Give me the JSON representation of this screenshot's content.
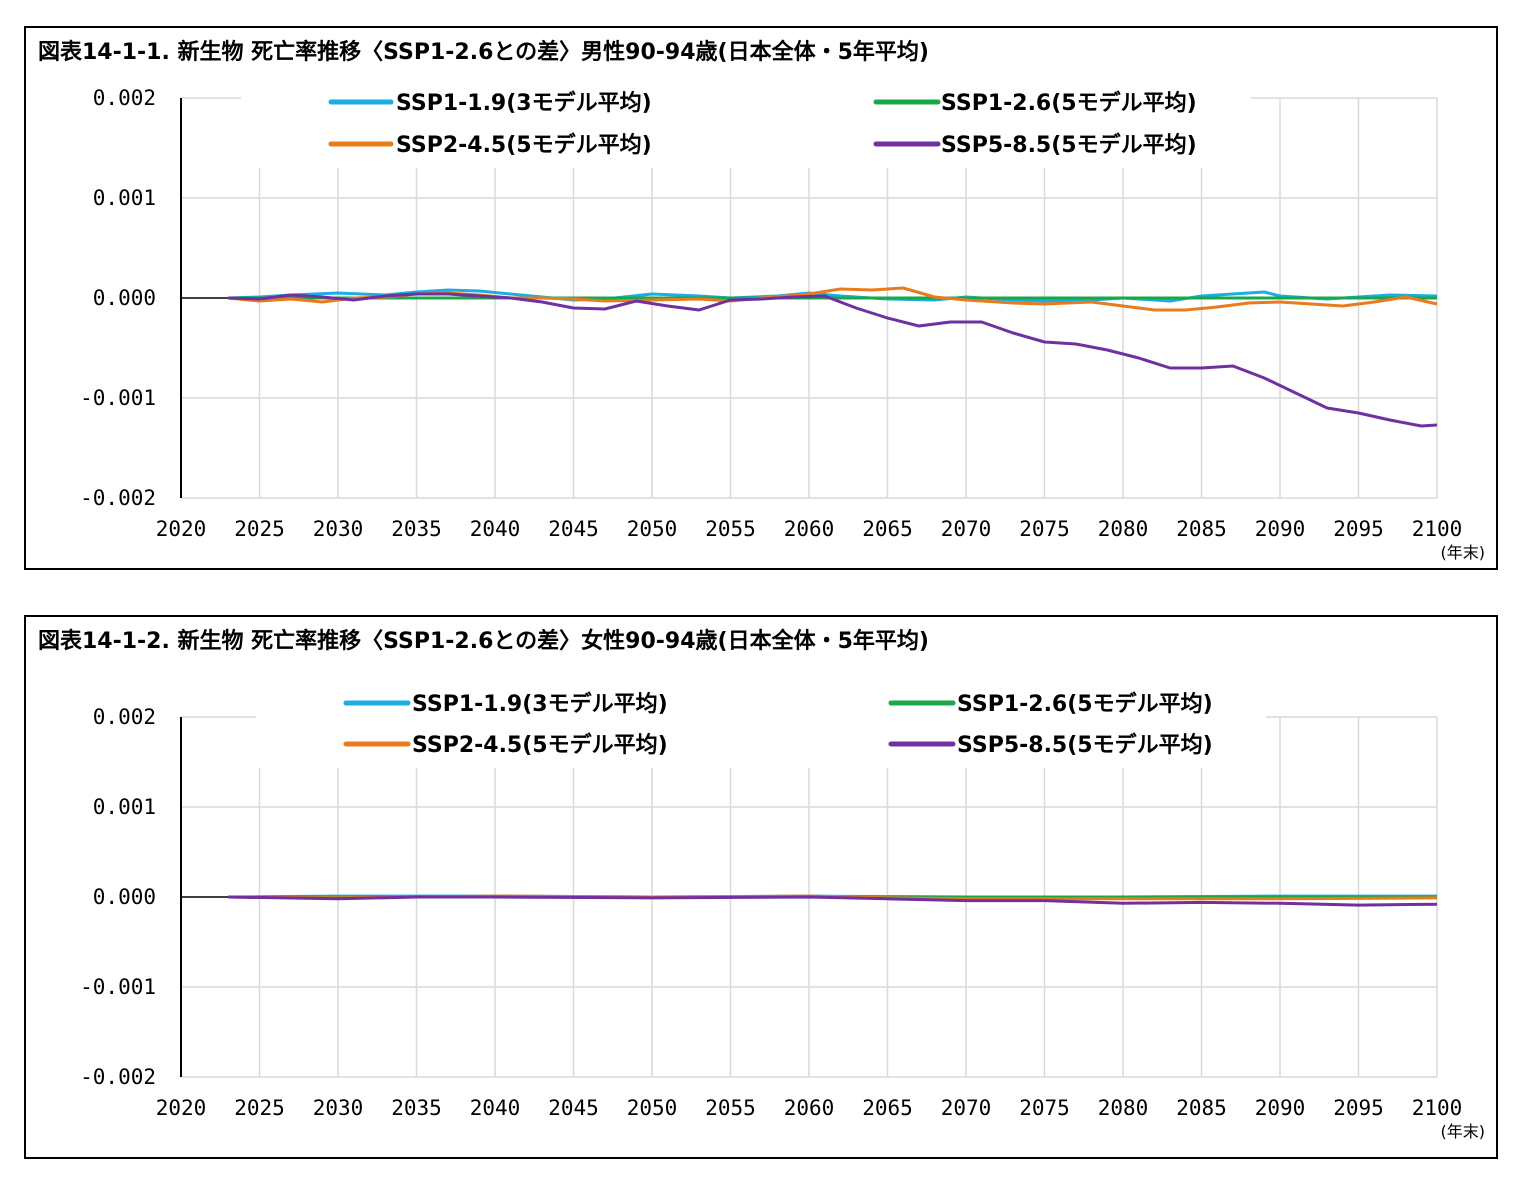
{
  "chart_data": [
    {
      "type": "line",
      "title": "図表14-1-1. 新生物 死亡率推移〈SSP1-2.6との差〉男性90-94歳(日本全体・5年平均)",
      "x_unit": "(年末)",
      "xlim": [
        2020,
        2100
      ],
      "ylim": [
        -0.002,
        0.002
      ],
      "x_ticks": [
        "2020",
        "2025",
        "2030",
        "2035",
        "2040",
        "2045",
        "2050",
        "2055",
        "2060",
        "2065",
        "2070",
        "2075",
        "2080",
        "2085",
        "2090",
        "2095",
        "2100"
      ],
      "y_ticks": [
        "0.002",
        "0.001",
        "0.000",
        "-0.001",
        "-0.002"
      ],
      "grid": true,
      "legend": "top",
      "series": [
        {
          "name": "SSP1-1.9(3モデル平均)",
          "color": "#1aaee5",
          "x": [
            2023,
            2025,
            2027,
            2030,
            2033,
            2035,
            2037,
            2039,
            2041,
            2043,
            2045,
            2047,
            2050,
            2053,
            2055,
            2058,
            2060,
            2062,
            2065,
            2068,
            2070,
            2073,
            2075,
            2078,
            2080,
            2083,
            2085,
            2087,
            2089,
            2090,
            2093,
            2095,
            2097,
            2100
          ],
          "y": [
            0,
            1e-05,
            3e-05,
            5e-05,
            3e-05,
            6e-05,
            8e-05,
            7e-05,
            4e-05,
            1e-05,
            -2e-05,
            -1e-05,
            4e-05,
            2e-05,
            0,
            2e-05,
            5e-05,
            2e-05,
            -1e-05,
            -2e-05,
            1e-05,
            -2e-05,
            -3e-05,
            -2e-05,
            0,
            -3e-05,
            2e-05,
            4e-05,
            6e-05,
            2e-05,
            -1e-05,
            1e-05,
            3e-05,
            2e-05
          ]
        },
        {
          "name": "SSP1-2.6(5モデル平均)",
          "color": "#18a84a",
          "x": [
            2023,
            2100
          ],
          "y": [
            0,
            0
          ]
        },
        {
          "name": "SSP2-4.5(5モデル平均)",
          "color": "#e97b1c",
          "x": [
            2023,
            2025,
            2027,
            2029,
            2031,
            2033,
            2035,
            2037,
            2039,
            2041,
            2043,
            2045,
            2047,
            2050,
            2053,
            2055,
            2057,
            2060,
            2062,
            2064,
            2066,
            2068,
            2070,
            2073,
            2075,
            2078,
            2080,
            2082,
            2084,
            2086,
            2088,
            2090,
            2092,
            2094,
            2096,
            2098,
            2100
          ],
          "y": [
            0,
            -3e-05,
            -1e-05,
            -4e-05,
            0,
            1e-05,
            4e-05,
            5e-05,
            3e-05,
            0,
            0,
            -1e-05,
            -3e-05,
            -2e-05,
            -1e-05,
            -3e-05,
            0,
            4e-05,
            9e-05,
            8e-05,
            0.0001,
            1e-05,
            -2e-05,
            -5e-05,
            -6e-05,
            -4e-05,
            -8e-05,
            -0.00012,
            -0.00012,
            -9e-05,
            -5e-05,
            -4e-05,
            -6e-05,
            -8e-05,
            -4e-05,
            1e-05,
            -6e-05
          ]
        },
        {
          "name": "SSP5-8.5(5モデル平均)",
          "color": "#7030a0",
          "x": [
            2023,
            2025,
            2027,
            2029,
            2031,
            2033,
            2035,
            2037,
            2039,
            2041,
            2043,
            2045,
            2047,
            2049,
            2051,
            2053,
            2055,
            2057,
            2059,
            2061,
            2063,
            2065,
            2067,
            2069,
            2071,
            2073,
            2075,
            2077,
            2079,
            2081,
            2083,
            2085,
            2087,
            2089,
            2091,
            2093,
            2095,
            2097,
            2099,
            2100
          ],
          "y": [
            0,
            -1e-05,
            3e-05,
            1e-05,
            -2e-05,
            2e-05,
            4e-05,
            4e-05,
            2e-05,
            0,
            -4e-05,
            -0.0001,
            -0.00011,
            -3e-05,
            -8e-05,
            -0.00012,
            -2e-05,
            -1e-05,
            1e-05,
            2e-05,
            -0.0001,
            -0.0002,
            -0.00028,
            -0.00024,
            -0.00024,
            -0.00035,
            -0.00044,
            -0.00046,
            -0.00052,
            -0.0006,
            -0.0007,
            -0.0007,
            -0.00068,
            -0.0008,
            -0.00095,
            -0.0011,
            -0.00115,
            -0.00122,
            -0.00128,
            -0.00127
          ]
        }
      ]
    },
    {
      "type": "line",
      "title": "図表14-1-2. 新生物 死亡率推移〈SSP1-2.6との差〉女性90-94歳(日本全体・5年平均)",
      "x_unit": "(年末)",
      "xlim": [
        2020,
        2100
      ],
      "ylim": [
        -0.002,
        0.002
      ],
      "x_ticks": [
        "2020",
        "2025",
        "2030",
        "2035",
        "2040",
        "2045",
        "2050",
        "2055",
        "2060",
        "2065",
        "2070",
        "2075",
        "2080",
        "2085",
        "2090",
        "2095",
        "2100"
      ],
      "y_ticks": [
        "0.002",
        "0.001",
        "0.000",
        "-0.001",
        "-0.002"
      ],
      "grid": true,
      "legend": "top",
      "series": [
        {
          "name": "SSP1-1.9(3モデル平均)",
          "color": "#1aaee5",
          "x": [
            2023,
            2030,
            2040,
            2050,
            2060,
            2070,
            2080,
            2090,
            2100
          ],
          "y": [
            0,
            1e-05,
            1e-05,
            0,
            1e-05,
            0,
            0,
            1e-05,
            1e-05
          ]
        },
        {
          "name": "SSP1-2.6(5モデル平均)",
          "color": "#18a84a",
          "x": [
            2023,
            2100
          ],
          "y": [
            0,
            0
          ]
        },
        {
          "name": "SSP2-4.5(5モデル平均)",
          "color": "#e97b1c",
          "x": [
            2023,
            2030,
            2040,
            2050,
            2060,
            2065,
            2070,
            2080,
            2090,
            2100
          ],
          "y": [
            0,
            -1e-05,
            1e-05,
            0,
            1e-05,
            -1e-05,
            -2e-05,
            -2e-05,
            -2e-05,
            -1e-05
          ]
        },
        {
          "name": "SSP5-8.5(5モデル平均)",
          "color": "#7030a0",
          "x": [
            2023,
            2030,
            2035,
            2040,
            2050,
            2060,
            2065,
            2070,
            2075,
            2080,
            2085,
            2090,
            2095,
            2100
          ],
          "y": [
            0,
            -2e-05,
            0,
            0,
            -1e-05,
            0,
            -2e-05,
            -4e-05,
            -4e-05,
            -7e-05,
            -6e-05,
            -7e-05,
            -9e-05,
            -8e-05
          ]
        }
      ]
    }
  ]
}
